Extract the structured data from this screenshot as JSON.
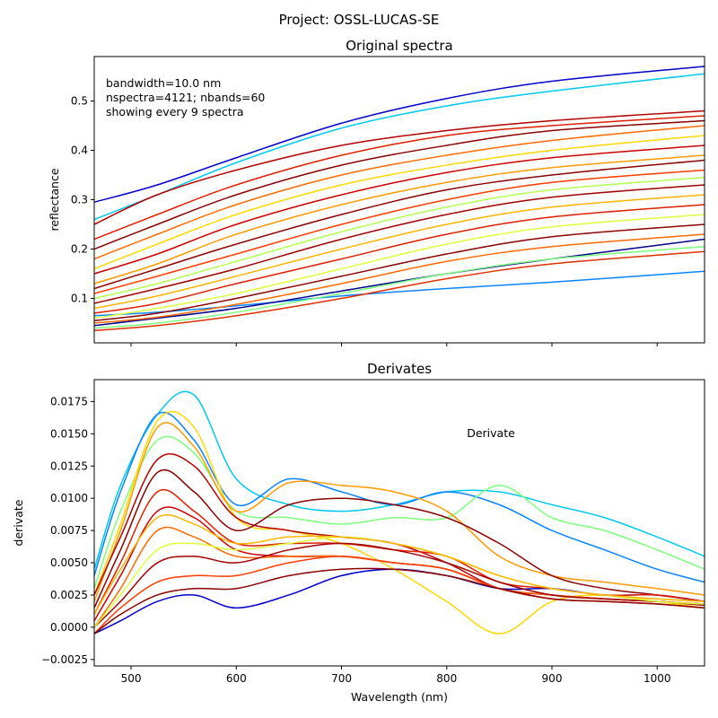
{
  "figure": {
    "suptitle": "Project: OSSL-LUCAS-SE"
  },
  "chart_data": [
    {
      "type": "line",
      "title": "Original spectra",
      "xlabel": "",
      "ylabel": "reflectance",
      "xlim": [
        465,
        1045
      ],
      "ylim": [
        0.01,
        0.59
      ],
      "xticks": [
        500,
        600,
        700,
        800,
        900,
        1000
      ],
      "yticks": [
        0.1,
        0.2,
        0.3,
        0.4,
        0.5
      ],
      "ytick_labels": [
        "0.1",
        "0.2",
        "0.3",
        "0.4",
        "0.5"
      ],
      "annotation": [
        "bandwidth=10.0 nm",
        "nspectra=4121; nbands=60",
        "showing every 9 spectra"
      ],
      "grid": false,
      "x": [
        465,
        525,
        600,
        700,
        800,
        900,
        1045
      ],
      "series": [
        {
          "color": "#0000cd",
          "values": [
            0.295,
            0.33,
            0.385,
            0.455,
            0.505,
            0.54,
            0.57
          ]
        },
        {
          "color": "#00c8f0",
          "values": [
            0.26,
            0.31,
            0.375,
            0.445,
            0.49,
            0.52,
            0.555
          ]
        },
        {
          "color": "#0a84ff",
          "values": [
            0.065,
            0.072,
            0.085,
            0.105,
            0.12,
            0.133,
            0.155
          ]
        },
        {
          "color": "#00008b",
          "values": [
            0.045,
            0.06,
            0.08,
            0.115,
            0.15,
            0.18,
            0.22
          ]
        },
        {
          "color": "#b40000",
          "values": [
            0.25,
            0.31,
            0.36,
            0.41,
            0.44,
            0.46,
            0.48
          ]
        },
        {
          "color": "#e01e00",
          "values": [
            0.22,
            0.27,
            0.33,
            0.39,
            0.43,
            0.45,
            0.47
          ]
        },
        {
          "color": "#8b0000",
          "values": [
            0.2,
            0.25,
            0.31,
            0.37,
            0.41,
            0.44,
            0.46
          ]
        },
        {
          "color": "#ff6a00",
          "values": [
            0.18,
            0.23,
            0.29,
            0.35,
            0.39,
            0.42,
            0.45
          ]
        },
        {
          "color": "#ffd700",
          "values": [
            0.16,
            0.21,
            0.27,
            0.33,
            0.37,
            0.4,
            0.43
          ]
        },
        {
          "color": "#cc0000",
          "values": [
            0.15,
            0.19,
            0.25,
            0.31,
            0.355,
            0.385,
            0.41
          ]
        },
        {
          "color": "#ff9a00",
          "values": [
            0.13,
            0.17,
            0.23,
            0.29,
            0.335,
            0.365,
            0.39
          ]
        },
        {
          "color": "#8b0000",
          "values": [
            0.12,
            0.16,
            0.21,
            0.27,
            0.32,
            0.35,
            0.38
          ]
        },
        {
          "color": "#ff3c00",
          "values": [
            0.11,
            0.145,
            0.19,
            0.25,
            0.3,
            0.335,
            0.36
          ]
        },
        {
          "color": "#b4ff50",
          "values": [
            0.1,
            0.13,
            0.175,
            0.235,
            0.285,
            0.32,
            0.345
          ]
        },
        {
          "color": "#a00000",
          "values": [
            0.09,
            0.12,
            0.16,
            0.22,
            0.27,
            0.305,
            0.33
          ]
        },
        {
          "color": "#ffb400",
          "values": [
            0.08,
            0.105,
            0.145,
            0.2,
            0.25,
            0.285,
            0.31
          ]
        },
        {
          "color": "#e01e00",
          "values": [
            0.07,
            0.09,
            0.13,
            0.18,
            0.23,
            0.265,
            0.29
          ]
        },
        {
          "color": "#dcff3c",
          "values": [
            0.06,
            0.08,
            0.11,
            0.16,
            0.21,
            0.245,
            0.27
          ]
        },
        {
          "color": "#8b0000",
          "values": [
            0.055,
            0.07,
            0.1,
            0.145,
            0.19,
            0.225,
            0.25
          ]
        },
        {
          "color": "#ff6a00",
          "values": [
            0.05,
            0.062,
            0.088,
            0.13,
            0.175,
            0.205,
            0.23
          ]
        },
        {
          "color": "#7dff7d",
          "values": [
            0.04,
            0.05,
            0.072,
            0.11,
            0.15,
            0.18,
            0.205
          ]
        },
        {
          "color": "#e03000",
          "values": [
            0.035,
            0.045,
            0.065,
            0.1,
            0.14,
            0.17,
            0.195
          ]
        }
      ]
    },
    {
      "type": "line",
      "title": "Derivates",
      "xlabel": "Wavelength (nm)",
      "ylabel": "derivate",
      "xlim": [
        465,
        1045
      ],
      "ylim": [
        -0.003,
        0.0192
      ],
      "xticks": [
        500,
        600,
        700,
        800,
        900,
        1000
      ],
      "yticks": [
        -0.0025,
        0.0,
        0.0025,
        0.005,
        0.0075,
        0.01,
        0.0125,
        0.015,
        0.0175
      ],
      "ytick_labels": [
        "−0.0025",
        "0.0000",
        "0.0025",
        "0.0050",
        "0.0075",
        "0.0100",
        "0.0125",
        "0.0150",
        "0.0175"
      ],
      "annotation": [
        "Derivate"
      ],
      "grid": false,
      "x": [
        465,
        490,
        525,
        560,
        600,
        650,
        700,
        750,
        800,
        850,
        900,
        950,
        1000,
        1045
      ],
      "series": [
        {
          "color": "#00c8f0",
          "values": [
            0.0045,
            0.011,
            0.0165,
            0.018,
            0.0115,
            0.0095,
            0.009,
            0.0095,
            0.0105,
            0.0105,
            0.0095,
            0.0085,
            0.007,
            0.0055
          ]
        },
        {
          "color": "#0a84ff",
          "values": [
            0.004,
            0.0105,
            0.0165,
            0.0145,
            0.0095,
            0.0115,
            0.0105,
            0.0095,
            0.0105,
            0.0095,
            0.0075,
            0.006,
            0.0045,
            0.0035
          ]
        },
        {
          "color": "#7dff7d",
          "values": [
            0.003,
            0.009,
            0.0145,
            0.0135,
            0.009,
            0.0085,
            0.008,
            0.0085,
            0.0085,
            0.011,
            0.0085,
            0.0075,
            0.006,
            0.0045
          ]
        },
        {
          "color": "#ffd700",
          "values": [
            0.0025,
            0.008,
            0.016,
            0.0155,
            0.0085,
            0.0075,
            0.0065,
            0.0045,
            0.002,
            -0.0005,
            0.002,
            0.0025,
            0.002,
            0.0015
          ]
        },
        {
          "color": "#ff9a00",
          "values": [
            0.002,
            0.0075,
            0.0155,
            0.014,
            0.009,
            0.0112,
            0.011,
            0.0105,
            0.009,
            0.0055,
            0.004,
            0.0035,
            0.003,
            0.0025
          ]
        },
        {
          "color": "#0000cd",
          "values": [
            -0.0005,
            0.0005,
            0.002,
            0.0025,
            0.0015,
            0.0025,
            0.004,
            0.0045,
            0.004,
            0.003,
            0.003,
            0.0025,
            0.0025,
            0.002
          ]
        },
        {
          "color": "#b40000",
          "values": [
            0.0025,
            0.007,
            0.013,
            0.0125,
            0.0085,
            0.0075,
            0.007,
            0.0065,
            0.005,
            0.003,
            0.0025,
            0.0022,
            0.002,
            0.0018
          ]
        },
        {
          "color": "#8b0000",
          "values": [
            0.0015,
            0.006,
            0.012,
            0.0105,
            0.0075,
            0.0095,
            0.01,
            0.0095,
            0.0085,
            0.0065,
            0.004,
            0.003,
            0.0025,
            0.002
          ]
        },
        {
          "color": "#e01e00",
          "values": [
            0.001,
            0.005,
            0.0105,
            0.009,
            0.0065,
            0.0065,
            0.0065,
            0.006,
            0.0055,
            0.0035,
            0.003,
            0.0025,
            0.0025,
            0.002
          ]
        },
        {
          "color": "#cc0000",
          "values": [
            0.0005,
            0.004,
            0.009,
            0.0085,
            0.006,
            0.0055,
            0.0055,
            0.005,
            0.0045,
            0.003,
            0.0025,
            0.0022,
            0.002,
            0.0018
          ]
        },
        {
          "color": "#ff6a00",
          "values": [
            0.0,
            0.003,
            0.0075,
            0.007,
            0.0055,
            0.0055,
            0.0055,
            0.005,
            0.0045,
            0.003,
            0.0025,
            0.0022,
            0.002,
            0.0018
          ]
        },
        {
          "color": "#a00000",
          "values": [
            0.0,
            0.002,
            0.005,
            0.0055,
            0.005,
            0.006,
            0.0065,
            0.006,
            0.005,
            0.0035,
            0.0025,
            0.0022,
            0.002,
            0.0017
          ]
        },
        {
          "color": "#ff3c00",
          "values": [
            -0.0005,
            0.0015,
            0.0035,
            0.004,
            0.004,
            0.005,
            0.0055,
            0.005,
            0.0045,
            0.003,
            0.0022,
            0.002,
            0.0018,
            0.0015
          ]
        },
        {
          "color": "#8b0000",
          "values": [
            -0.0005,
            0.001,
            0.0025,
            0.003,
            0.003,
            0.004,
            0.0045,
            0.0045,
            0.004,
            0.003,
            0.0022,
            0.002,
            0.0018,
            0.0015
          ]
        },
        {
          "color": "#dcff3c",
          "values": [
            0.0,
            0.0025,
            0.006,
            0.0065,
            0.006,
            0.0065,
            0.007,
            0.0065,
            0.0055,
            0.004,
            0.003,
            0.0025,
            0.002,
            0.0018
          ]
        },
        {
          "color": "#ffb400",
          "values": [
            0.001,
            0.0045,
            0.0085,
            0.008,
            0.0065,
            0.007,
            0.007,
            0.0065,
            0.0055,
            0.004,
            0.003,
            0.0025,
            0.0022,
            0.002
          ]
        }
      ]
    }
  ]
}
